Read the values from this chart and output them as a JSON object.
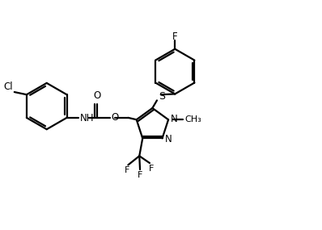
{
  "background_color": "#ffffff",
  "line_color": "#000000",
  "line_width": 1.6,
  "font_size": 8.5,
  "figsize": [
    3.98,
    2.85
  ],
  "dpi": 100,
  "xlim": [
    0,
    10
  ],
  "ylim": [
    0,
    7.15
  ]
}
